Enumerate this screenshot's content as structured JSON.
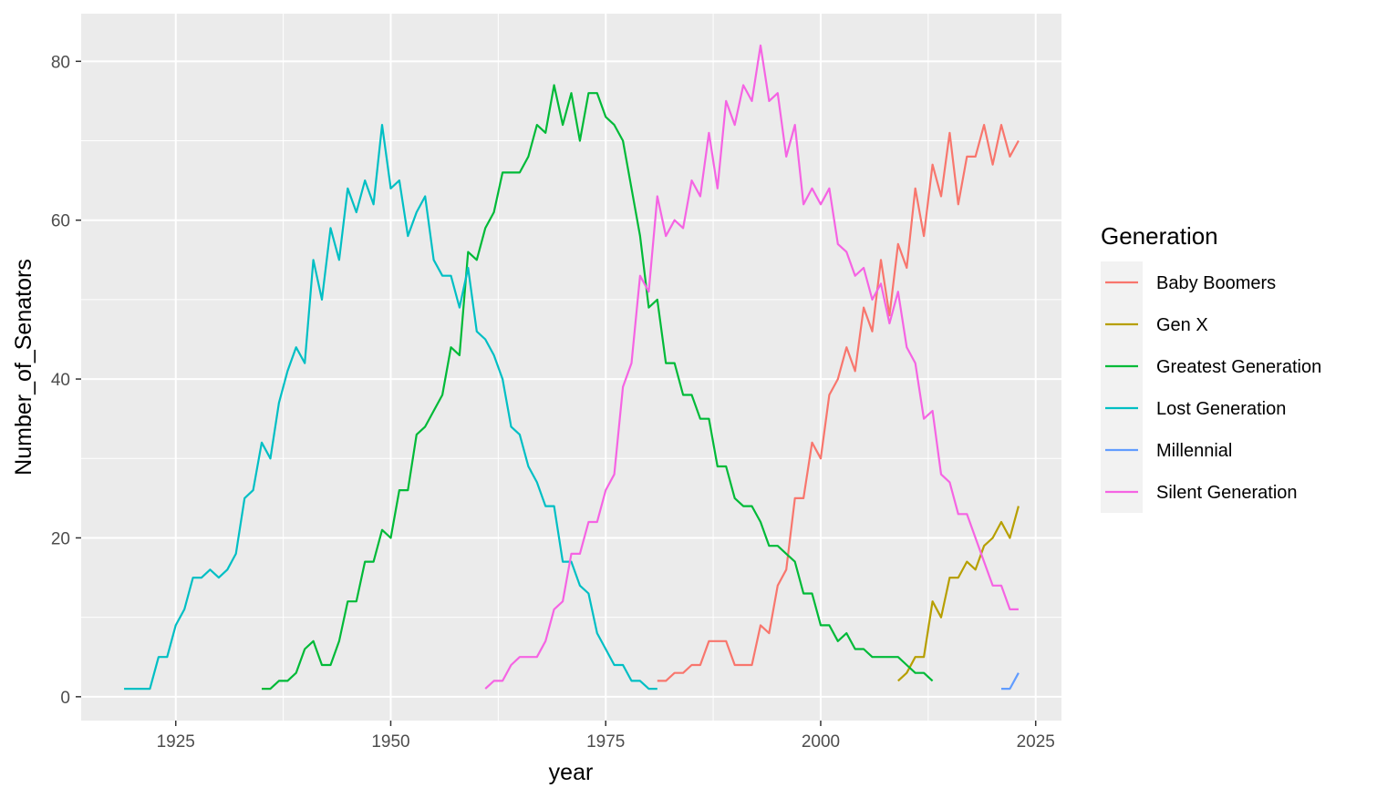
{
  "chart_data": {
    "type": "line",
    "title": "",
    "xlabel": "year",
    "ylabel": "Number_of_Senators",
    "xlim": [
      1914,
      2028
    ],
    "ylim": [
      -3,
      86
    ],
    "x_ticks": [
      1925,
      1950,
      1975,
      2000,
      2025
    ],
    "y_ticks": [
      0,
      20,
      40,
      60,
      80
    ],
    "grid": true,
    "legend_title": "Generation",
    "legend_position": "right",
    "series": [
      {
        "name": "Baby Boomers",
        "color": "#F8766D",
        "x": [
          1981,
          1982,
          1983,
          1984,
          1985,
          1986,
          1987,
          1988,
          1989,
          1990,
          1991,
          1992,
          1993,
          1994,
          1995,
          1996,
          1997,
          1998,
          1999,
          2000,
          2001,
          2002,
          2003,
          2004,
          2005,
          2006,
          2007,
          2008,
          2009,
          2010,
          2011,
          2012,
          2013,
          2014,
          2015,
          2016,
          2017,
          2018,
          2019,
          2020,
          2021,
          2022,
          2023
        ],
        "y": [
          2,
          2,
          3,
          3,
          4,
          4,
          7,
          7,
          7,
          4,
          4,
          4,
          9,
          8,
          14,
          16,
          25,
          25,
          32,
          30,
          38,
          40,
          44,
          41,
          49,
          46,
          55,
          48,
          57,
          54,
          64,
          58,
          67,
          63,
          71,
          62,
          68,
          68,
          72,
          67,
          72,
          68,
          70
        ]
      },
      {
        "name": "Gen X",
        "color": "#B79F00",
        "x": [
          2009,
          2010,
          2011,
          2012,
          2013,
          2014,
          2015,
          2016,
          2017,
          2018,
          2019,
          2020,
          2021,
          2022,
          2023
        ],
        "y": [
          2,
          3,
          5,
          5,
          12,
          10,
          15,
          15,
          17,
          16,
          19,
          20,
          22,
          20,
          24
        ]
      },
      {
        "name": "Greatest Generation",
        "color": "#00BA38",
        "x": [
          1935,
          1936,
          1937,
          1938,
          1939,
          1940,
          1941,
          1942,
          1943,
          1944,
          1945,
          1946,
          1947,
          1948,
          1949,
          1950,
          1951,
          1952,
          1953,
          1954,
          1955,
          1956,
          1957,
          1958,
          1959,
          1960,
          1961,
          1962,
          1963,
          1964,
          1965,
          1966,
          1967,
          1968,
          1969,
          1970,
          1971,
          1972,
          1973,
          1974,
          1975,
          1976,
          1977,
          1978,
          1979,
          1980,
          1981,
          1982,
          1983,
          1984,
          1985,
          1986,
          1987,
          1988,
          1989,
          1990,
          1991,
          1992,
          1993,
          1994,
          1995,
          1996,
          1997,
          1998,
          1999,
          2000,
          2001,
          2002,
          2003,
          2004,
          2005,
          2006,
          2007,
          2008,
          2009,
          2010,
          2011,
          2012,
          2013
        ],
        "y": [
          1,
          1,
          2,
          2,
          3,
          6,
          7,
          4,
          4,
          7,
          12,
          12,
          17,
          17,
          21,
          20,
          26,
          26,
          33,
          34,
          36,
          38,
          44,
          43,
          56,
          55,
          59,
          61,
          66,
          66,
          66,
          68,
          72,
          71,
          77,
          72,
          76,
          70,
          76,
          76,
          73,
          72,
          70,
          64,
          58,
          49,
          50,
          42,
          42,
          38,
          38,
          35,
          35,
          29,
          29,
          25,
          24,
          24,
          22,
          19,
          19,
          18,
          17,
          13,
          13,
          9,
          9,
          7,
          8,
          6,
          6,
          5,
          5,
          5,
          5,
          4,
          3,
          3,
          2
        ]
      },
      {
        "name": "Lost Generation",
        "color": "#00BFC4",
        "x": [
          1919,
          1920,
          1921,
          1922,
          1923,
          1924,
          1925,
          1926,
          1927,
          1928,
          1929,
          1930,
          1931,
          1932,
          1933,
          1934,
          1935,
          1936,
          1937,
          1938,
          1939,
          1940,
          1941,
          1942,
          1943,
          1944,
          1945,
          1946,
          1947,
          1948,
          1949,
          1950,
          1951,
          1952,
          1953,
          1954,
          1955,
          1956,
          1957,
          1958,
          1959,
          1960,
          1961,
          1962,
          1963,
          1964,
          1965,
          1966,
          1967,
          1968,
          1969,
          1970,
          1971,
          1972,
          1973,
          1974,
          1975,
          1976,
          1977,
          1978,
          1979,
          1980,
          1981
        ],
        "y": [
          1,
          1,
          1,
          1,
          5,
          5,
          9,
          11,
          15,
          15,
          16,
          15,
          16,
          18,
          25,
          26,
          32,
          30,
          37,
          41,
          44,
          42,
          55,
          50,
          59,
          55,
          64,
          61,
          65,
          62,
          72,
          64,
          65,
          58,
          61,
          63,
          55,
          53,
          53,
          49,
          54,
          46,
          45,
          43,
          40,
          34,
          33,
          29,
          27,
          24,
          24,
          17,
          17,
          14,
          13,
          8,
          6,
          4,
          4,
          2,
          2,
          1,
          1
        ]
      },
      {
        "name": "Millennial",
        "color": "#619CFF",
        "x": [
          2021,
          2022,
          2023
        ],
        "y": [
          1,
          1,
          3
        ]
      },
      {
        "name": "Silent Generation",
        "color": "#F564E3",
        "x": [
          1961,
          1962,
          1963,
          1964,
          1965,
          1966,
          1967,
          1968,
          1969,
          1970,
          1971,
          1972,
          1973,
          1974,
          1975,
          1976,
          1977,
          1978,
          1979,
          1980,
          1981,
          1982,
          1983,
          1984,
          1985,
          1986,
          1987,
          1988,
          1989,
          1990,
          1991,
          1992,
          1993,
          1994,
          1995,
          1996,
          1997,
          1998,
          1999,
          2000,
          2001,
          2002,
          2003,
          2004,
          2005,
          2006,
          2007,
          2008,
          2009,
          2010,
          2011,
          2012,
          2013,
          2014,
          2015,
          2016,
          2017,
          2018,
          2019,
          2020,
          2021,
          2022,
          2023
        ],
        "y": [
          1,
          2,
          2,
          4,
          5,
          5,
          5,
          7,
          11,
          12,
          18,
          18,
          22,
          22,
          26,
          28,
          39,
          42,
          53,
          51,
          63,
          58,
          60,
          59,
          65,
          63,
          71,
          64,
          75,
          72,
          77,
          75,
          82,
          75,
          76,
          68,
          72,
          62,
          64,
          62,
          64,
          57,
          56,
          53,
          54,
          50,
          52,
          47,
          51,
          44,
          42,
          35,
          36,
          28,
          27,
          23,
          23,
          20,
          17,
          14,
          14,
          11,
          11
        ]
      }
    ]
  }
}
